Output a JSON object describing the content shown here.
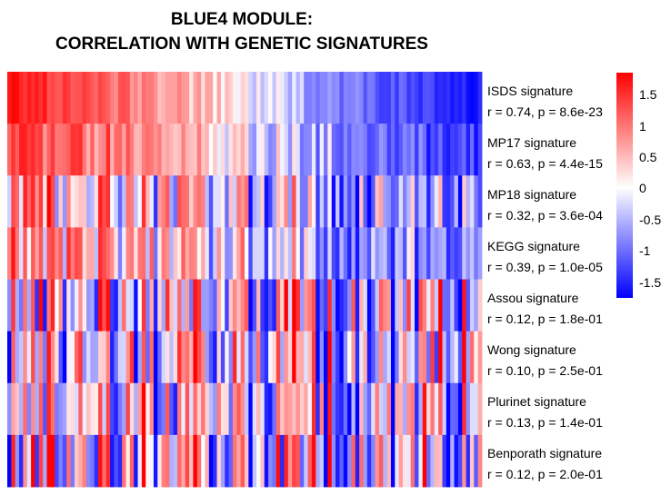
{
  "title_line1": "BLUE4 MODULE:",
  "title_line2": "CORRELATION WITH GENETIC SIGNATURES",
  "chart_data": {
    "type": "heatmap",
    "columns": 120,
    "rows": [
      {
        "label": "ISDS signature",
        "stats": "r = 0.74, p = 8.6e-23"
      },
      {
        "label": "MP17 signature",
        "stats": "r = 0.63, p = 4.4e-15"
      },
      {
        "label": "MP18 signature",
        "stats": "r = 0.32, p = 3.6e-04"
      },
      {
        "label": "KEGG signature",
        "stats": "r = 0.39, p = 1.0e-05"
      },
      {
        "label": "Assou signature",
        "stats": "r = 0.12, p = 1.8e-01"
      },
      {
        "label": "Wong signature",
        "stats": "r = 0.10, p = 2.5e-01"
      },
      {
        "label": "Plurinet signature",
        "stats": "r = 0.13, p = 1.4e-01"
      },
      {
        "label": "Benporath signature",
        "stats": "r = 0.12, p = 2.0e-01"
      }
    ],
    "color_scale": {
      "low": "#0000ff",
      "mid": "#ffffff",
      "high": "#ff0000",
      "range": [
        -1.7,
        1.8
      ]
    },
    "legend_ticks": [
      "1.5",
      "1",
      "0.5",
      "0",
      "-0.5",
      "-1",
      "-1.5"
    ],
    "legend_values": [
      1.5,
      1,
      0.5,
      0,
      -0.5,
      -1,
      -1.5
    ]
  }
}
